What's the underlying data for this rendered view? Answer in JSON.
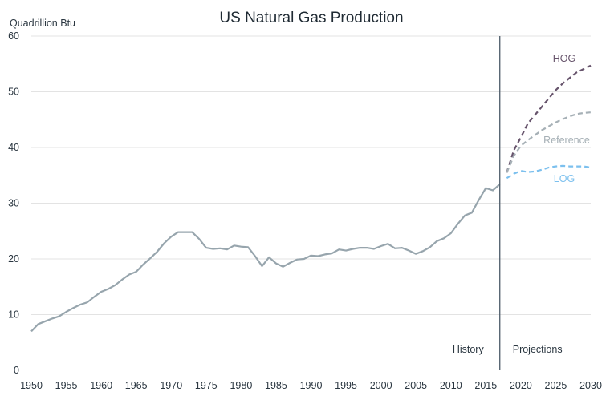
{
  "chart_data": {
    "type": "line",
    "title": "US Natural Gas Production",
    "ylabel": "Quadrillion Btu",
    "xlabel": "",
    "xlim": [
      1950,
      2030
    ],
    "ylim": [
      0,
      60
    ],
    "xticks": [
      1950,
      1955,
      1960,
      1965,
      1970,
      1975,
      1980,
      1985,
      1990,
      1995,
      2000,
      2005,
      2010,
      2015,
      2020,
      2025,
      2030
    ],
    "yticks": [
      0,
      10,
      20,
      30,
      40,
      50,
      60
    ],
    "grid": "horizontal",
    "divider_year": 2017,
    "divider_labels": {
      "left": "History",
      "right": "Projections"
    },
    "series": [
      {
        "key": "history",
        "style": "solid",
        "color": "#97a5ad",
        "x": [
          1950,
          1951,
          1952,
          1953,
          1954,
          1955,
          1956,
          1957,
          1958,
          1959,
          1960,
          1961,
          1962,
          1963,
          1964,
          1965,
          1966,
          1967,
          1968,
          1969,
          1970,
          1971,
          1972,
          1973,
          1974,
          1975,
          1976,
          1977,
          1978,
          1979,
          1980,
          1981,
          1982,
          1983,
          1984,
          1985,
          1986,
          1987,
          1988,
          1989,
          1990,
          1991,
          1992,
          1993,
          1994,
          1995,
          1996,
          1997,
          1998,
          1999,
          2000,
          2001,
          2002,
          2003,
          2004,
          2005,
          2006,
          2007,
          2008,
          2009,
          2010,
          2011,
          2012,
          2013,
          2014,
          2015,
          2016,
          2017
        ],
        "y": [
          7.0,
          8.3,
          8.8,
          9.3,
          9.7,
          10.5,
          11.2,
          11.8,
          12.2,
          13.2,
          14.1,
          14.6,
          15.3,
          16.3,
          17.2,
          17.7,
          19.0,
          20.1,
          21.3,
          22.8,
          24.0,
          24.8,
          24.8,
          24.8,
          23.6,
          22.0,
          21.8,
          21.9,
          21.7,
          22.4,
          22.2,
          22.1,
          20.5,
          18.7,
          20.3,
          19.2,
          18.6,
          19.3,
          19.9,
          20.0,
          20.6,
          20.5,
          20.8,
          21.0,
          21.7,
          21.5,
          21.8,
          22.0,
          22.0,
          21.8,
          22.3,
          22.7,
          21.9,
          22.0,
          21.5,
          20.9,
          21.4,
          22.1,
          23.2,
          23.7,
          24.6,
          26.3,
          27.8,
          28.3,
          30.6,
          32.7,
          32.3,
          33.4
        ]
      },
      {
        "key": "hog",
        "name": "HOG",
        "style": "dashed",
        "color": "#67546c",
        "x": [
          2018,
          2019,
          2020,
          2021,
          2022,
          2023,
          2024,
          2025,
          2026,
          2027,
          2028,
          2029,
          2030
        ],
        "y": [
          35.5,
          39.5,
          41.8,
          44.3,
          45.8,
          47.3,
          48.8,
          50.3,
          51.5,
          52.5,
          53.5,
          54.1,
          54.7
        ]
      },
      {
        "key": "reference",
        "name": "Reference",
        "style": "dashed",
        "color": "#a6b0b6",
        "x": [
          2018,
          2019,
          2020,
          2021,
          2022,
          2023,
          2024,
          2025,
          2026,
          2027,
          2028,
          2029,
          2030
        ],
        "y": [
          35.5,
          38.5,
          40.3,
          41.3,
          42.2,
          43.1,
          43.8,
          44.5,
          45.1,
          45.6,
          46.0,
          46.2,
          46.3
        ]
      },
      {
        "key": "log",
        "name": "LOG",
        "style": "dashed",
        "color": "#7cc0ee",
        "x": [
          2018,
          2019,
          2020,
          2021,
          2022,
          2023,
          2024,
          2025,
          2026,
          2027,
          2028,
          2029,
          2030
        ],
        "y": [
          34.5,
          35.3,
          35.8,
          35.6,
          35.7,
          36.0,
          36.4,
          36.6,
          36.7,
          36.6,
          36.6,
          36.6,
          36.4
        ]
      }
    ]
  }
}
